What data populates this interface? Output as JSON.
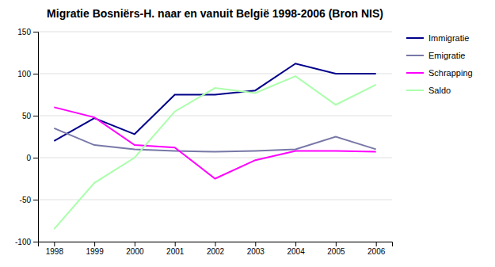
{
  "chart_data": {
    "type": "line",
    "title": "Migratie Bosniërs-H. naar en vanuit België 1998-2006 (Bron NIS)",
    "x": [
      1998,
      1999,
      2000,
      2001,
      2002,
      2003,
      2004,
      2005,
      2006
    ],
    "series": [
      {
        "name": "Immigratie",
        "color": "#00008B",
        "values": [
          20,
          47,
          28,
          75,
          75,
          80,
          112,
          100,
          100
        ]
      },
      {
        "name": "Emigratie",
        "color": "#7878A8",
        "values": [
          35,
          15,
          10,
          8,
          7,
          8,
          10,
          25,
          10
        ]
      },
      {
        "name": "Schrapping",
        "color": "#FF00FF",
        "values": [
          60,
          48,
          15,
          12,
          -25,
          -3,
          8,
          8,
          7
        ]
      },
      {
        "name": "Saldo",
        "color": "#AAFFAA",
        "values": [
          -85,
          -30,
          0,
          55,
          83,
          77,
          97,
          63,
          87
        ]
      }
    ],
    "xlim": [
      1997.6,
      2006.4
    ],
    "xticks": [
      1998,
      1999,
      2000,
      2001,
      2002,
      2003,
      2004,
      2005,
      2006
    ],
    "ylim": [
      -100,
      150
    ],
    "yticks": [
      -100,
      -50,
      0,
      50,
      100,
      150
    ],
    "grid": "y",
    "legend": "right"
  }
}
